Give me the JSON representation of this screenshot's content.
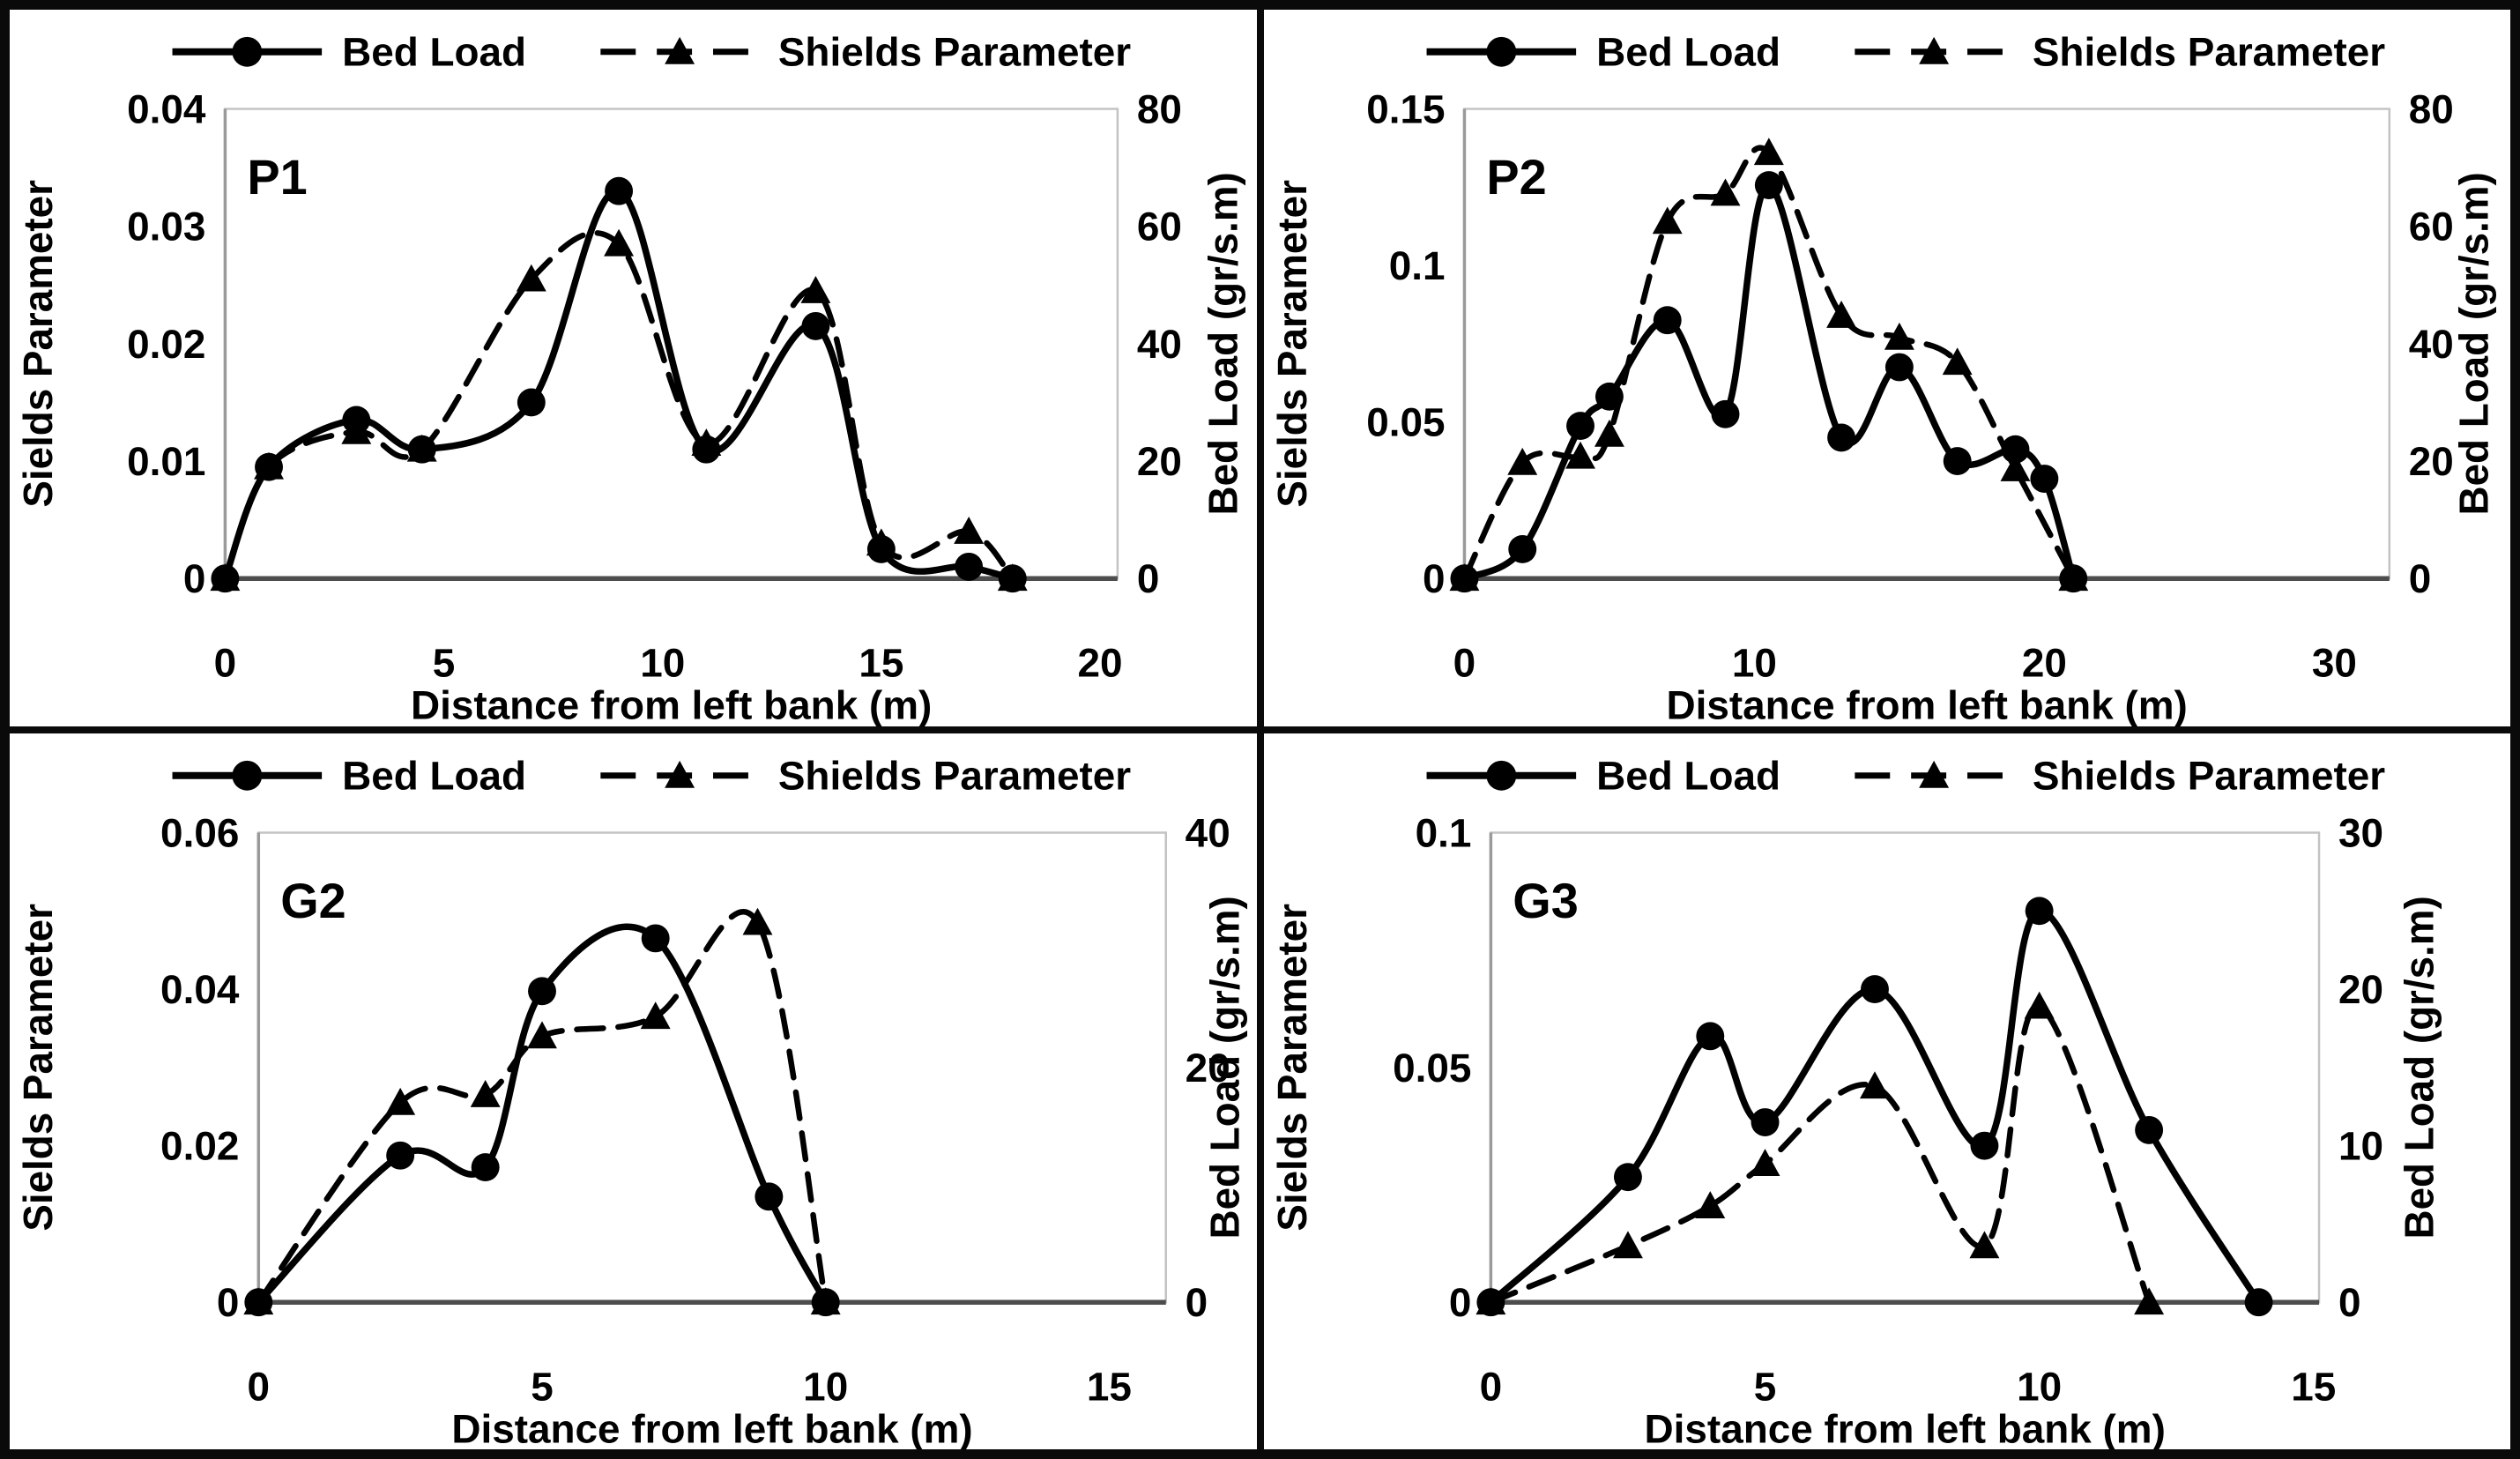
{
  "figure": {
    "xlabel": "Distance from left bank (m)",
    "ylabel_left": "Sields Parameter",
    "ylabel_right": "Bed Load (gr/s.m)",
    "legend": [
      {
        "label": "Bed Load",
        "marker": "circle",
        "line": "solid"
      },
      {
        "label": "Shields Parameter",
        "marker": "triangle",
        "line": "dashed"
      }
    ],
    "colors": {
      "series": "#000000",
      "text": "#000000",
      "plot_border": "#c3c3c3",
      "left_spine": "#9a9a9a",
      "zero_line": "#4d4d4d",
      "background": "#ffffff",
      "frame": "#0a0a0a"
    }
  },
  "chart_data": [
    {
      "type": "line",
      "panel": "P1",
      "xlabel": "Distance from left bank (m)",
      "x_ticks": {
        "values": [
          0,
          5,
          10,
          15,
          20
        ],
        "labels": [
          "0",
          "5",
          "10",
          "15",
          "20"
        ]
      },
      "xlim": [
        0,
        20.4
      ],
      "left_axis": {
        "label": "Sields Parameter",
        "ticks": [
          0,
          0.01,
          0.02,
          0.03,
          0.04
        ],
        "tick_labels": [
          "0",
          "0.01",
          "0.02",
          "0.03",
          "0.04"
        ],
        "lim": [
          0,
          0.04
        ]
      },
      "right_axis": {
        "label": "Bed Load (gr/s.m)",
        "ticks": [
          0,
          20,
          40,
          60,
          80
        ],
        "tick_labels": [
          "0",
          "20",
          "40",
          "60",
          "80"
        ],
        "lim": [
          0,
          80
        ]
      },
      "series": [
        {
          "name": "Bed Load",
          "axis": "right",
          "line": "solid",
          "marker": "circle",
          "x": [
            0,
            1,
            3,
            4.5,
            7,
            9,
            11,
            13.5,
            15,
            17,
            18
          ],
          "y": [
            0,
            19,
            27,
            22,
            30,
            66,
            22,
            43,
            5,
            2,
            0
          ]
        },
        {
          "name": "Shields Parameter",
          "axis": "left",
          "line": "dashed",
          "marker": "triangle",
          "x": [
            0,
            1,
            3,
            4.5,
            7,
            9,
            11,
            13.5,
            15,
            17,
            18
          ],
          "y": [
            0,
            0.0095,
            0.0125,
            0.011,
            0.0255,
            0.0285,
            0.0115,
            0.0245,
            0.003,
            0.004,
            0
          ]
        }
      ]
    },
    {
      "type": "line",
      "panel": "P2",
      "xlabel": "Distance from left bank (m)",
      "x_ticks": {
        "values": [
          0,
          10,
          20,
          30
        ],
        "labels": [
          "0",
          "10",
          "20",
          "30"
        ]
      },
      "xlim": [
        0,
        31.9
      ],
      "left_axis": {
        "label": "Sields Parameter",
        "ticks": [
          0,
          0.05,
          0.1,
          0.15
        ],
        "tick_labels": [
          "0",
          "0.05",
          "0.1",
          "0.15"
        ],
        "lim": [
          0,
          0.15
        ]
      },
      "right_axis": {
        "label": "Bed Load (gr/s.m)",
        "ticks": [
          0,
          20,
          40,
          60,
          80
        ],
        "tick_labels": [
          "0",
          "20",
          "40",
          "60",
          "80"
        ],
        "lim": [
          0,
          80
        ]
      },
      "series": [
        {
          "name": "Bed Load",
          "axis": "right",
          "line": "solid",
          "marker": "circle",
          "x": [
            0,
            2,
            4,
            5,
            7,
            9,
            10.5,
            13,
            15,
            17,
            19,
            20,
            21
          ],
          "y": [
            0,
            5,
            26,
            31,
            44,
            28,
            67,
            24,
            36,
            20,
            22,
            17,
            0
          ]
        },
        {
          "name": "Shields Parameter",
          "axis": "left",
          "line": "dashed",
          "marker": "triangle",
          "x": [
            0,
            2,
            4,
            5,
            7,
            9,
            10.5,
            13,
            15,
            17,
            19,
            21
          ],
          "y": [
            0,
            0.037,
            0.039,
            0.046,
            0.114,
            0.123,
            0.136,
            0.084,
            0.077,
            0.069,
            0.035,
            0
          ]
        }
      ]
    },
    {
      "type": "line",
      "panel": "G2",
      "xlabel": "Distance from left bank (m)",
      "x_ticks": {
        "values": [
          0,
          5,
          10,
          15
        ],
        "labels": [
          "0",
          "5",
          "10",
          "15"
        ]
      },
      "xlim": [
        0,
        16.0
      ],
      "left_axis": {
        "label": "Sields Parameter",
        "ticks": [
          0,
          0.02,
          0.04,
          0.06
        ],
        "tick_labels": [
          "0",
          "0.02",
          "0.04",
          "0.06"
        ],
        "lim": [
          0,
          0.06
        ]
      },
      "right_axis": {
        "label": "Bed Load (gr/s.m)",
        "ticks": [
          0,
          20,
          40
        ],
        "tick_labels": [
          "0",
          "20",
          "40"
        ],
        "lim": [
          0,
          40
        ]
      },
      "series": [
        {
          "name": "Bed Load",
          "axis": "right",
          "line": "solid",
          "marker": "circle",
          "x": [
            0,
            2.5,
            4,
            5,
            7,
            9,
            10
          ],
          "y": [
            0,
            12.5,
            11.5,
            26.5,
            31,
            9,
            0
          ]
        },
        {
          "name": "Shields Parameter",
          "axis": "left",
          "line": "dashed",
          "marker": "triangle",
          "x": [
            0,
            2.5,
            4,
            5,
            7,
            8.8,
            10
          ],
          "y": [
            0,
            0.0255,
            0.0265,
            0.034,
            0.0365,
            0.0485,
            0
          ]
        }
      ]
    },
    {
      "type": "line",
      "panel": "G3",
      "xlabel": "Distance from left bank (m)",
      "x_ticks": {
        "values": [
          0,
          5,
          10,
          15
        ],
        "labels": [
          "0",
          "5",
          "10",
          "15"
        ]
      },
      "xlim": [
        0,
        15.1
      ],
      "left_axis": {
        "label": "Sields Parameter",
        "ticks": [
          0,
          0.05,
          0.1
        ],
        "tick_labels": [
          "0",
          "0.05",
          "0.1"
        ],
        "lim": [
          0,
          0.1
        ]
      },
      "right_axis": {
        "label": "Bed Load (gr/s.m)",
        "ticks": [
          0,
          10,
          20,
          30
        ],
        "tick_labels": [
          "0",
          "10",
          "20",
          "30"
        ],
        "lim": [
          0,
          30
        ]
      },
      "series": [
        {
          "name": "Bed Load",
          "axis": "right",
          "line": "solid",
          "marker": "circle",
          "x": [
            0,
            2.5,
            4,
            5,
            7,
            9,
            10,
            12,
            14
          ],
          "y": [
            0,
            8,
            17,
            11.5,
            20,
            10,
            25,
            11,
            0
          ]
        },
        {
          "name": "Shields Parameter",
          "axis": "left",
          "line": "dashed",
          "marker": "triangle",
          "x": [
            0,
            2.5,
            4,
            5,
            7,
            9,
            10,
            12
          ],
          "y": [
            0,
            0.012,
            0.0205,
            0.0295,
            0.046,
            0.012,
            0.063,
            0
          ]
        }
      ]
    }
  ]
}
